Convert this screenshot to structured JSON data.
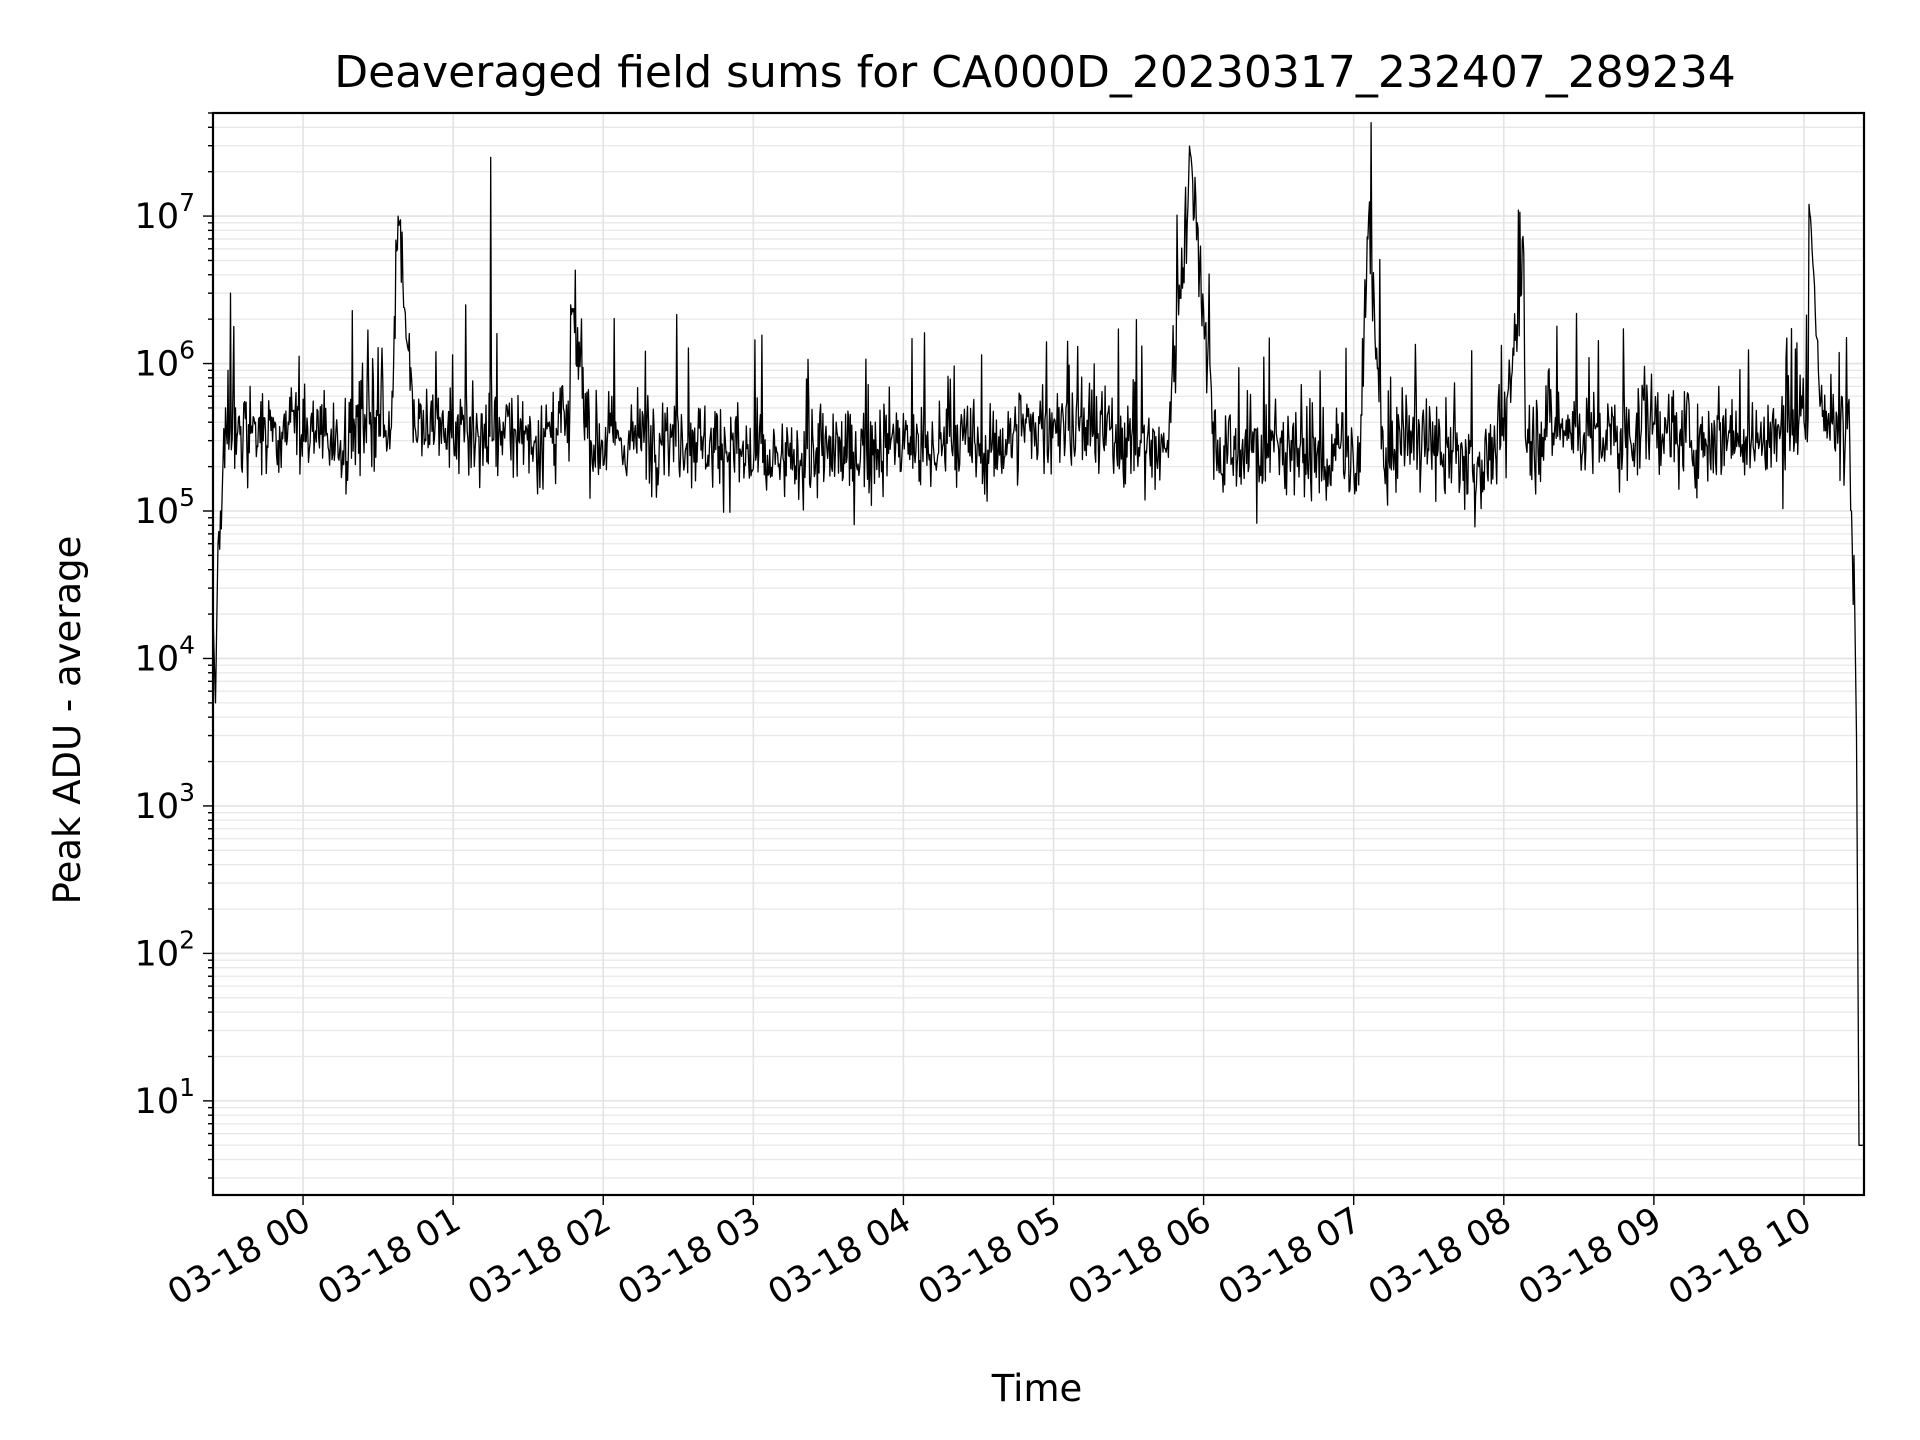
{
  "chart_data": {
    "type": "line",
    "title": "Deaveraged field sums for CA000D_20230317_232407_289234",
    "xlabel": "Time",
    "ylabel": "Peak ADU - average",
    "yscale": "log",
    "ylim": [
      2.3,
      50000000
    ],
    "xlim": [
      "03-17 23:24",
      "03-18 10:24"
    ],
    "grid": "both",
    "x_tick_labels": [
      "03-18 00",
      "03-18 01",
      "03-18 02",
      "03-18 03",
      "03-18 04",
      "03-18 05",
      "03-18 06",
      "03-18 07",
      "03-18 08",
      "03-18 09",
      "03-18 10"
    ],
    "y_ticks": [
      {
        "base": "10",
        "exp": "1",
        "value": 10
      },
      {
        "base": "10",
        "exp": "2",
        "value": 100
      },
      {
        "base": "10",
        "exp": "3",
        "value": 1000
      },
      {
        "base": "10",
        "exp": "4",
        "value": 10000
      },
      {
        "base": "10",
        "exp": "5",
        "value": 100000
      },
      {
        "base": "10",
        "exp": "6",
        "value": 1000000
      },
      {
        "base": "10",
        "exp": "7",
        "value": 10000000
      }
    ],
    "series_color": "#000000",
    "series": [
      {
        "x": [
          "03-17 23:24",
          "03-17 23:25",
          "03-17 23:26",
          "03-17 23:27",
          "03-17 23:29",
          "03-17 23:30",
          "03-17 23:31",
          "03-17 23:32",
          "03-17 23:33",
          "03-17 23:36",
          "03-17 23:41",
          "03-17 23:45",
          "03-17 23:50",
          "03-17 23:55",
          "03-18 00:05",
          "03-18 00:15",
          "03-18 00:25",
          "03-18 00:35",
          "03-18 00:38",
          "03-18 00:45",
          "03-18 00:55",
          "03-18 01:02",
          "03-18 01:05",
          "03-18 01:15",
          "03-18 01:20",
          "03-18 01:25",
          "03-18 01:35",
          "03-18 01:45",
          "03-18 01:47",
          "03-18 01:55",
          "03-18 02:10",
          "03-18 02:25",
          "03-18 02:40",
          "03-18 02:55",
          "03-18 03:10",
          "03-18 03:25",
          "03-18 03:40",
          "03-18 03:55",
          "03-18 04:10",
          "03-18 04:20",
          "03-18 04:35",
          "03-18 04:45",
          "03-18 05:00",
          "03-18 05:15",
          "03-18 05:30",
          "03-18 05:45",
          "03-18 05:55",
          "03-18 06:05",
          "03-18 06:20",
          "03-18 06:35",
          "03-18 06:50",
          "03-18 06:55",
          "03-18 07:02",
          "03-18 07:06",
          "03-18 07:12",
          "03-18 07:20",
          "03-18 07:35",
          "03-18 07:50",
          "03-18 08:00",
          "03-18 08:08",
          "03-18 08:15",
          "03-18 08:30",
          "03-18 08:45",
          "03-18 09:00",
          "03-18 09:15",
          "03-18 09:30",
          "03-18 09:45",
          "03-18 10:00",
          "03-18 10:02",
          "03-18 10:08",
          "03-18 10:12",
          "03-18 10:15",
          "03-18 10:17",
          "03-18 10:19",
          "03-18 10:20",
          "03-18 10:21",
          "03-18 10:22",
          "03-18 10:23",
          "03-18 10:24"
        ],
        "y": [
          20000,
          5000,
          60000,
          100000,
          500000,
          900000,
          3000000,
          700000,
          500000,
          300000,
          400000,
          350000,
          300000,
          400000,
          350000,
          300000,
          400000,
          350000,
          10000000,
          350000,
          400000,
          450000,
          2500000,
          25000000,
          400000,
          350000,
          300000,
          400000,
          2500000,
          300000,
          300000,
          350000,
          300000,
          250000,
          200000,
          250000,
          250000,
          300000,
          250000,
          300000,
          250000,
          350000,
          400000,
          350000,
          300000,
          250000,
          25000000,
          250000,
          250000,
          300000,
          200000,
          300000,
          150000,
          10000000,
          200000,
          350000,
          250000,
          200000,
          300000,
          5500000,
          400000,
          350000,
          300000,
          400000,
          300000,
          350000,
          300000,
          400000,
          12000000,
          350000,
          400000,
          600000,
          1500000,
          100000,
          50000,
          3000,
          5,
          5,
          5
        ]
      }
    ]
  }
}
